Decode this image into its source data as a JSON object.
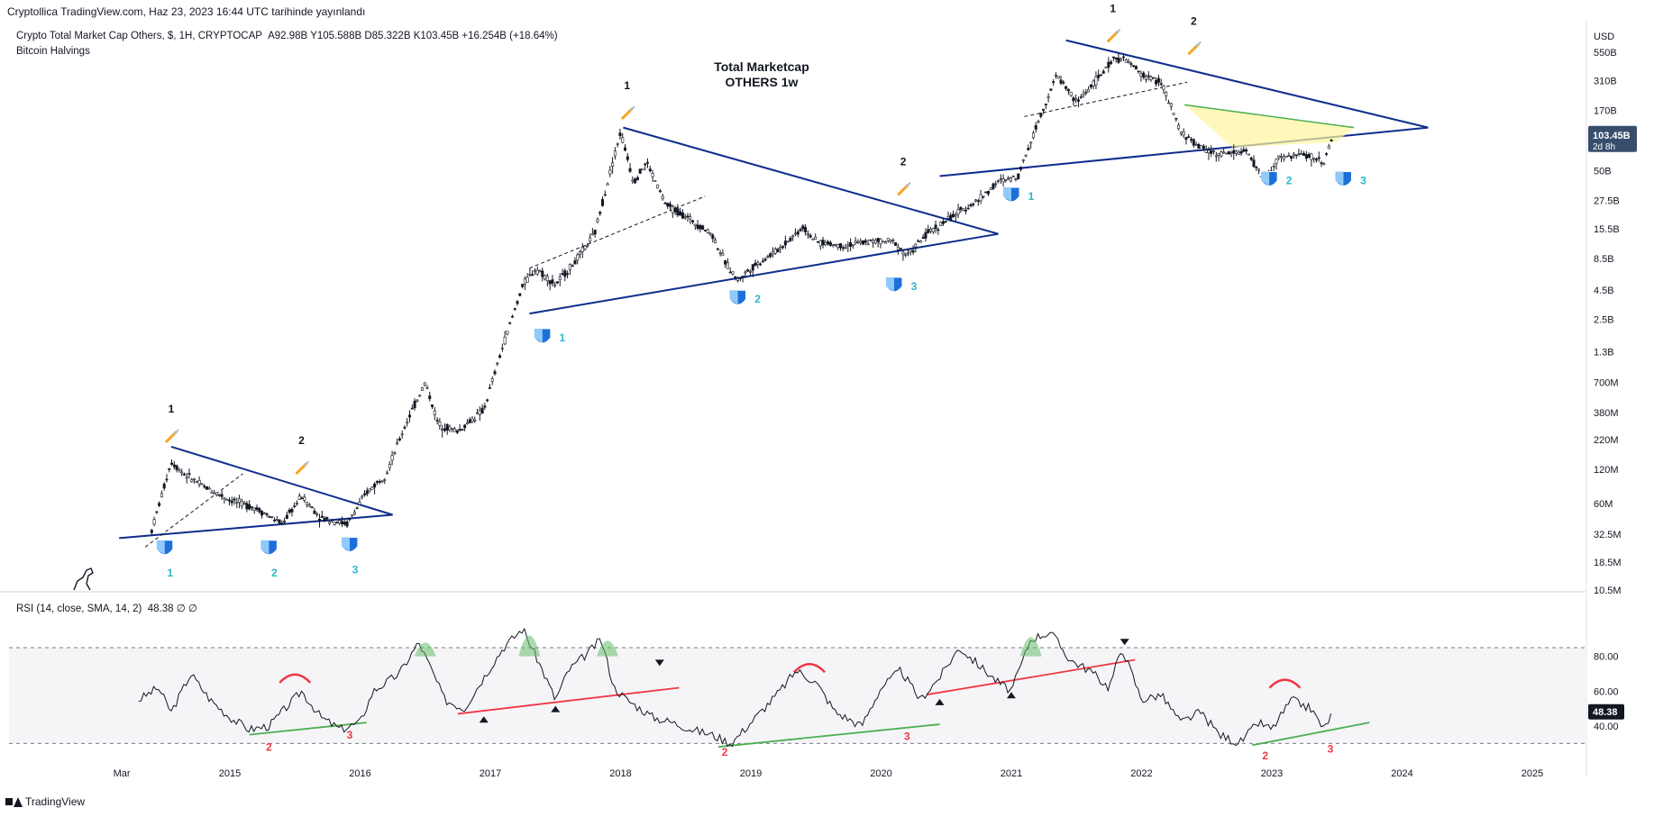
{
  "attribution": "Cryptollica TradingView.com, Haz 23, 2023 16:44 UTC tarihinde yayınlandı",
  "legend": {
    "symbol": "Crypto Total Market Cap Others, $, 1H, CRYPTOCAP",
    "open": "A92.98B",
    "high": "Y105.588B",
    "low": "D85.322B",
    "close": "K103.45B",
    "change": "+16.254B (+18.64%)",
    "indicator": "Bitcoin Halvings"
  },
  "footer": {
    "brand": "TradingView"
  },
  "colors": {
    "up": "#26a69a",
    "candle": "#131722",
    "trendline": "#0d2d8c",
    "rsi_green": "#4caf50",
    "rsi_red": "#f23645",
    "wave_label": "#2db7c9",
    "price_badge": "#374e6b",
    "rsi_badge": "#131722",
    "triangle_fill": "#fff59d"
  },
  "chart_data": [
    {
      "type": "line",
      "title": "Total Marketcap",
      "subtitle": "OTHERS 1w",
      "currency": "USD",
      "yscale": "log",
      "y_ticks": [
        "550B",
        "310B",
        "170B",
        "50B",
        "27.5B",
        "15.5B",
        "8.5B",
        "4.5B",
        "2.5B",
        "1.3B",
        "700M",
        "380M",
        "220M",
        "120M",
        "60M",
        "32.5M",
        "18.5M",
        "10.5M"
      ],
      "x_ticks": [
        "Mar",
        "2015",
        "2016",
        "2017",
        "2018",
        "2019",
        "2020",
        "2021",
        "2022",
        "2023",
        "2024",
        "2025"
      ],
      "last_price": "103.45B",
      "countdown": "2d 8h",
      "x": [
        2014.4,
        2014.55,
        2014.65,
        2014.8,
        2015.0,
        2015.2,
        2015.4,
        2015.55,
        2015.7,
        2015.9,
        2016.05,
        2016.2,
        2016.35,
        2016.5,
        2016.6,
        2016.75,
        2016.95,
        2017.1,
        2017.25,
        2017.35,
        2017.5,
        2017.65,
        2017.8,
        2017.9,
        2018.0,
        2018.1,
        2018.2,
        2018.35,
        2018.5,
        2018.7,
        2018.8,
        2018.9,
        2019.0,
        2019.2,
        2019.4,
        2019.5,
        2019.7,
        2019.9,
        2020.1,
        2020.2,
        2020.35,
        2020.55,
        2020.75,
        2020.9,
        2021.05,
        2021.2,
        2021.35,
        2021.5,
        2021.65,
        2021.8,
        2021.9,
        2022.0,
        2022.15,
        2022.3,
        2022.45,
        2022.6,
        2022.8,
        2022.95,
        2023.05,
        2023.25,
        2023.4,
        2023.47
      ],
      "values": [
        0.035,
        0.14,
        0.11,
        0.085,
        0.065,
        0.055,
        0.04,
        0.07,
        0.045,
        0.04,
        0.075,
        0.11,
        0.3,
        0.7,
        0.3,
        0.26,
        0.4,
        1.5,
        5,
        7,
        5,
        8,
        14,
        40,
        110,
        40,
        60,
        25,
        20,
        14,
        8,
        5.5,
        7,
        10,
        16,
        12,
        11,
        12,
        12,
        9,
        14,
        20,
        28,
        40,
        45,
        130,
        350,
        200,
        310,
        500,
        450,
        350,
        300,
        110,
        80,
        70,
        75,
        40,
        65,
        70,
        60,
        103.45
      ],
      "waves": [
        {
          "label": "1",
          "x": 2014.5,
          "color": "wave"
        },
        {
          "label": "2",
          "x": 2015.3,
          "color": "wave"
        },
        {
          "label": "3",
          "x": 2015.92,
          "color": "wave"
        },
        {
          "label": "1",
          "x": 2017.4,
          "color": "wave"
        },
        {
          "label": "2",
          "x": 2018.9,
          "color": "wave"
        },
        {
          "label": "3",
          "x": 2020.1,
          "color": "wave"
        },
        {
          "label": "1",
          "x": 2021.0,
          "color": "wave"
        },
        {
          "label": "2",
          "x": 2022.98,
          "color": "wave"
        },
        {
          "label": "3",
          "x": 2023.55,
          "color": "wave"
        }
      ],
      "peak_labels": [
        {
          "label": "1",
          "x": 2014.55
        },
        {
          "label": "2",
          "x": 2015.55
        },
        {
          "label": "1",
          "x": 2018.05
        },
        {
          "label": "2",
          "x": 2020.17
        },
        {
          "label": "1",
          "x": 2021.78
        },
        {
          "label": "2",
          "x": 2022.4
        }
      ]
    },
    {
      "type": "line",
      "title": "RSI (14, close, SMA, 14, 2)",
      "legend_values": "48.38  ∅  ∅",
      "ylim": [
        25,
        100
      ],
      "y_ticks": [
        "80.00",
        "60.00",
        "40.00"
      ],
      "bands": [
        30,
        85
      ],
      "last_value": "48.38",
      "x": [
        2014.3,
        2014.45,
        2014.55,
        2014.7,
        2014.85,
        2015.0,
        2015.15,
        2015.3,
        2015.45,
        2015.55,
        2015.7,
        2015.85,
        2016.0,
        2016.1,
        2016.3,
        2016.45,
        2016.55,
        2016.65,
        2016.8,
        2016.95,
        2017.1,
        2017.25,
        2017.4,
        2017.5,
        2017.6,
        2017.75,
        2017.85,
        2017.95,
        2018.05,
        2018.25,
        2018.4,
        2018.55,
        2018.7,
        2018.85,
        2019.0,
        2019.2,
        2019.35,
        2019.5,
        2019.65,
        2019.85,
        2020.0,
        2020.15,
        2020.3,
        2020.45,
        2020.6,
        2020.75,
        2020.9,
        2021.0,
        2021.15,
        2021.3,
        2021.45,
        2021.6,
        2021.75,
        2021.85,
        2022.0,
        2022.15,
        2022.3,
        2022.45,
        2022.6,
        2022.75,
        2022.9,
        2023.0,
        2023.15,
        2023.3,
        2023.4,
        2023.47
      ],
      "values": [
        55,
        62,
        48,
        70,
        55,
        45,
        38,
        40,
        52,
        60,
        45,
        38,
        42,
        60,
        70,
        88,
        72,
        55,
        50,
        68,
        85,
        96,
        72,
        55,
        72,
        82,
        90,
        62,
        55,
        45,
        42,
        38,
        35,
        30,
        42,
        58,
        72,
        65,
        48,
        40,
        62,
        72,
        55,
        68,
        85,
        75,
        65,
        60,
        90,
        94,
        78,
        72,
        62,
        85,
        55,
        58,
        42,
        48,
        35,
        30,
        42,
        38,
        55,
        50,
        38,
        48.38
      ]
    }
  ]
}
